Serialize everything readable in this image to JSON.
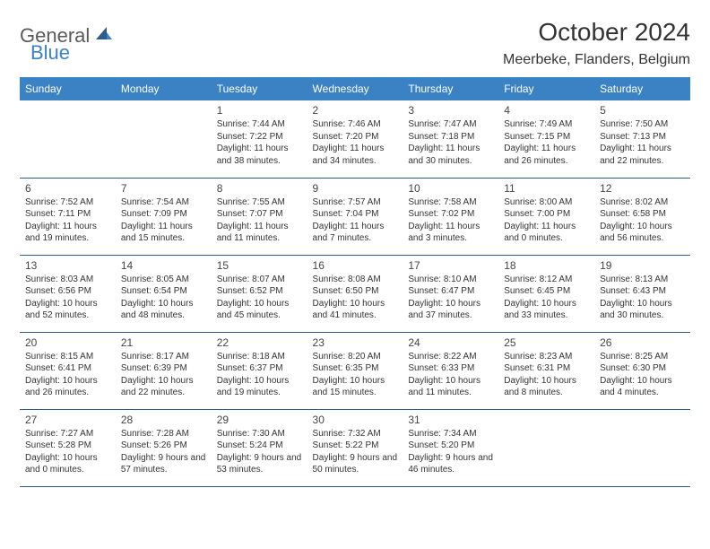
{
  "logo": {
    "text1": "General",
    "text2": "Blue"
  },
  "title": "October 2024",
  "location": "Meerbeke, Flanders, Belgium",
  "colors": {
    "header_bg": "#3b82c4",
    "header_text": "#ffffff",
    "border": "#2e5c8a",
    "logo_gray": "#5a5a5a",
    "logo_blue": "#3b82c4"
  },
  "dayHeaders": [
    "Sunday",
    "Monday",
    "Tuesday",
    "Wednesday",
    "Thursday",
    "Friday",
    "Saturday"
  ],
  "weeks": [
    [
      {
        "day": "",
        "sunrise": "",
        "sunset": "",
        "daylight": ""
      },
      {
        "day": "",
        "sunrise": "",
        "sunset": "",
        "daylight": ""
      },
      {
        "day": "1",
        "sunrise": "Sunrise: 7:44 AM",
        "sunset": "Sunset: 7:22 PM",
        "daylight": "Daylight: 11 hours and 38 minutes."
      },
      {
        "day": "2",
        "sunrise": "Sunrise: 7:46 AM",
        "sunset": "Sunset: 7:20 PM",
        "daylight": "Daylight: 11 hours and 34 minutes."
      },
      {
        "day": "3",
        "sunrise": "Sunrise: 7:47 AM",
        "sunset": "Sunset: 7:18 PM",
        "daylight": "Daylight: 11 hours and 30 minutes."
      },
      {
        "day": "4",
        "sunrise": "Sunrise: 7:49 AM",
        "sunset": "Sunset: 7:15 PM",
        "daylight": "Daylight: 11 hours and 26 minutes."
      },
      {
        "day": "5",
        "sunrise": "Sunrise: 7:50 AM",
        "sunset": "Sunset: 7:13 PM",
        "daylight": "Daylight: 11 hours and 22 minutes."
      }
    ],
    [
      {
        "day": "6",
        "sunrise": "Sunrise: 7:52 AM",
        "sunset": "Sunset: 7:11 PM",
        "daylight": "Daylight: 11 hours and 19 minutes."
      },
      {
        "day": "7",
        "sunrise": "Sunrise: 7:54 AM",
        "sunset": "Sunset: 7:09 PM",
        "daylight": "Daylight: 11 hours and 15 minutes."
      },
      {
        "day": "8",
        "sunrise": "Sunrise: 7:55 AM",
        "sunset": "Sunset: 7:07 PM",
        "daylight": "Daylight: 11 hours and 11 minutes."
      },
      {
        "day": "9",
        "sunrise": "Sunrise: 7:57 AM",
        "sunset": "Sunset: 7:04 PM",
        "daylight": "Daylight: 11 hours and 7 minutes."
      },
      {
        "day": "10",
        "sunrise": "Sunrise: 7:58 AM",
        "sunset": "Sunset: 7:02 PM",
        "daylight": "Daylight: 11 hours and 3 minutes."
      },
      {
        "day": "11",
        "sunrise": "Sunrise: 8:00 AM",
        "sunset": "Sunset: 7:00 PM",
        "daylight": "Daylight: 11 hours and 0 minutes."
      },
      {
        "day": "12",
        "sunrise": "Sunrise: 8:02 AM",
        "sunset": "Sunset: 6:58 PM",
        "daylight": "Daylight: 10 hours and 56 minutes."
      }
    ],
    [
      {
        "day": "13",
        "sunrise": "Sunrise: 8:03 AM",
        "sunset": "Sunset: 6:56 PM",
        "daylight": "Daylight: 10 hours and 52 minutes."
      },
      {
        "day": "14",
        "sunrise": "Sunrise: 8:05 AM",
        "sunset": "Sunset: 6:54 PM",
        "daylight": "Daylight: 10 hours and 48 minutes."
      },
      {
        "day": "15",
        "sunrise": "Sunrise: 8:07 AM",
        "sunset": "Sunset: 6:52 PM",
        "daylight": "Daylight: 10 hours and 45 minutes."
      },
      {
        "day": "16",
        "sunrise": "Sunrise: 8:08 AM",
        "sunset": "Sunset: 6:50 PM",
        "daylight": "Daylight: 10 hours and 41 minutes."
      },
      {
        "day": "17",
        "sunrise": "Sunrise: 8:10 AM",
        "sunset": "Sunset: 6:47 PM",
        "daylight": "Daylight: 10 hours and 37 minutes."
      },
      {
        "day": "18",
        "sunrise": "Sunrise: 8:12 AM",
        "sunset": "Sunset: 6:45 PM",
        "daylight": "Daylight: 10 hours and 33 minutes."
      },
      {
        "day": "19",
        "sunrise": "Sunrise: 8:13 AM",
        "sunset": "Sunset: 6:43 PM",
        "daylight": "Daylight: 10 hours and 30 minutes."
      }
    ],
    [
      {
        "day": "20",
        "sunrise": "Sunrise: 8:15 AM",
        "sunset": "Sunset: 6:41 PM",
        "daylight": "Daylight: 10 hours and 26 minutes."
      },
      {
        "day": "21",
        "sunrise": "Sunrise: 8:17 AM",
        "sunset": "Sunset: 6:39 PM",
        "daylight": "Daylight: 10 hours and 22 minutes."
      },
      {
        "day": "22",
        "sunrise": "Sunrise: 8:18 AM",
        "sunset": "Sunset: 6:37 PM",
        "daylight": "Daylight: 10 hours and 19 minutes."
      },
      {
        "day": "23",
        "sunrise": "Sunrise: 8:20 AM",
        "sunset": "Sunset: 6:35 PM",
        "daylight": "Daylight: 10 hours and 15 minutes."
      },
      {
        "day": "24",
        "sunrise": "Sunrise: 8:22 AM",
        "sunset": "Sunset: 6:33 PM",
        "daylight": "Daylight: 10 hours and 11 minutes."
      },
      {
        "day": "25",
        "sunrise": "Sunrise: 8:23 AM",
        "sunset": "Sunset: 6:31 PM",
        "daylight": "Daylight: 10 hours and 8 minutes."
      },
      {
        "day": "26",
        "sunrise": "Sunrise: 8:25 AM",
        "sunset": "Sunset: 6:30 PM",
        "daylight": "Daylight: 10 hours and 4 minutes."
      }
    ],
    [
      {
        "day": "27",
        "sunrise": "Sunrise: 7:27 AM",
        "sunset": "Sunset: 5:28 PM",
        "daylight": "Daylight: 10 hours and 0 minutes."
      },
      {
        "day": "28",
        "sunrise": "Sunrise: 7:28 AM",
        "sunset": "Sunset: 5:26 PM",
        "daylight": "Daylight: 9 hours and 57 minutes."
      },
      {
        "day": "29",
        "sunrise": "Sunrise: 7:30 AM",
        "sunset": "Sunset: 5:24 PM",
        "daylight": "Daylight: 9 hours and 53 minutes."
      },
      {
        "day": "30",
        "sunrise": "Sunrise: 7:32 AM",
        "sunset": "Sunset: 5:22 PM",
        "daylight": "Daylight: 9 hours and 50 minutes."
      },
      {
        "day": "31",
        "sunrise": "Sunrise: 7:34 AM",
        "sunset": "Sunset: 5:20 PM",
        "daylight": "Daylight: 9 hours and 46 minutes."
      },
      {
        "day": "",
        "sunrise": "",
        "sunset": "",
        "daylight": ""
      },
      {
        "day": "",
        "sunrise": "",
        "sunset": "",
        "daylight": ""
      }
    ]
  ]
}
